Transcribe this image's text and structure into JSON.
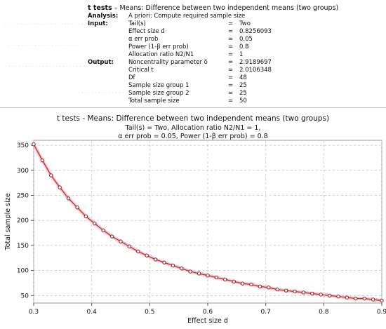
{
  "protocol": {
    "test_family": "t tests",
    "test_name": "Means: Difference between two independent means (two groups)",
    "analysis": {
      "label": "Analysis:",
      "value": "A priori: Compute required sample size"
    },
    "input": {
      "label": "Input:",
      "rows": [
        {
          "name": "Tail(s)",
          "value": "Two"
        },
        {
          "name": "Effect size d",
          "value": "0.8256093"
        },
        {
          "name": "α err prob",
          "value": "0.05"
        },
        {
          "name": "Power (1-β err prob)",
          "value": "0.8"
        },
        {
          "name": "Allocation ratio N2/N1",
          "value": "1"
        }
      ]
    },
    "output": {
      "label": "Output:",
      "rows": [
        {
          "name": "Noncentrality parameter δ",
          "value": "2.9189697"
        },
        {
          "name": "Critical t",
          "value": "2.0106348"
        },
        {
          "name": "Df",
          "value": "48"
        },
        {
          "name": "Sample size group 1",
          "value": "25"
        },
        {
          "name": "Sample size group 2",
          "value": "25"
        },
        {
          "name": "Total sample size",
          "value": "50"
        }
      ]
    },
    "equals": "="
  },
  "chart_data": {
    "type": "line",
    "title": "t tests - Means: Difference between two independent means (two groups)",
    "subtitle_line1": "Tail(s) = Two, Allocation ratio N2/N1 = 1,",
    "subtitle_line2": "α err prob = 0.05, Power (1-β err prob) = 0.8",
    "xlabel": "Effect size d",
    "ylabel": "Total sample size",
    "xlim": [
      0.3,
      0.9
    ],
    "ylim": [
      35,
      360
    ],
    "xticks": [
      "0.3",
      "0.4",
      "0.5",
      "0.6",
      "0.7",
      "0.8",
      "0.9"
    ],
    "yticks": [
      "50",
      "100",
      "150",
      "200",
      "250",
      "300",
      "350"
    ],
    "grid": true,
    "series": [
      {
        "color": "#c0392b",
        "x": [
          0.3,
          0.315,
          0.33,
          0.345,
          0.36,
          0.375,
          0.39,
          0.405,
          0.42,
          0.435,
          0.45,
          0.465,
          0.48,
          0.495,
          0.51,
          0.525,
          0.54,
          0.555,
          0.57,
          0.585,
          0.6,
          0.615,
          0.63,
          0.645,
          0.66,
          0.675,
          0.69,
          0.705,
          0.72,
          0.735,
          0.75,
          0.765,
          0.78,
          0.795,
          0.81,
          0.825,
          0.84,
          0.855,
          0.87,
          0.885,
          0.9
        ],
        "y": [
          352,
          320,
          290,
          266,
          244,
          226,
          208,
          194,
          180,
          168,
          158,
          148,
          138,
          130,
          122,
          116,
          110,
          104,
          98,
          94,
          90,
          86,
          82,
          78,
          74,
          72,
          68,
          66,
          62,
          60,
          58,
          56,
          54,
          52,
          50,
          48,
          46,
          44,
          44,
          42,
          40
        ]
      }
    ]
  }
}
